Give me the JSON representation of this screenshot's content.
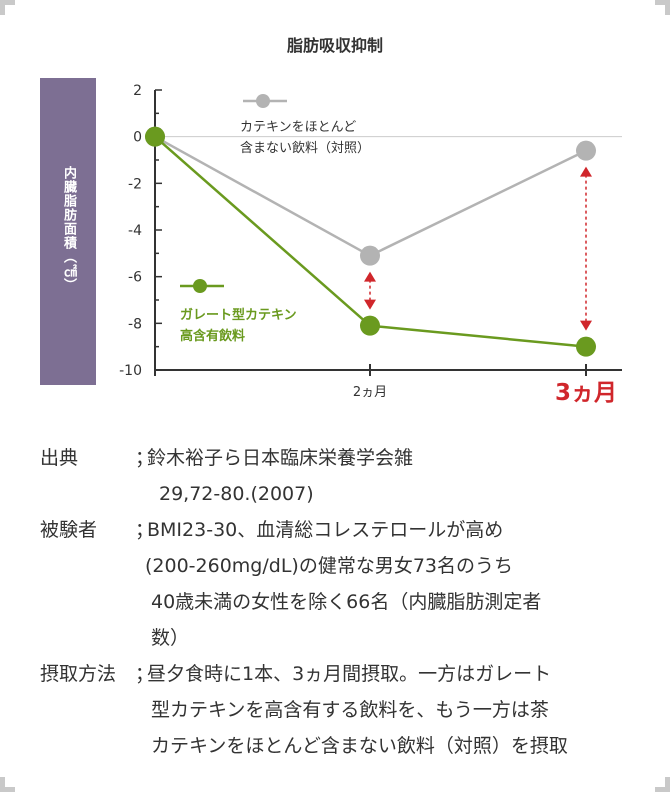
{
  "chart_data": {
    "type": "line",
    "title": "脂肪吸収抑制",
    "ylabel": "内臓脂肪面積（㎠）",
    "ylim": [
      -10,
      2
    ],
    "yticks": [
      2,
      0,
      -2,
      -4,
      -6,
      -8,
      -10
    ],
    "ytick_labels": [
      "2",
      "0",
      "-2",
      "-4",
      "-6",
      "-8",
      "-10"
    ],
    "x_labels": [
      "",
      "2ヵ月",
      "3ヵ月"
    ],
    "x_label_2": "2ヵ月",
    "x_label_3": "3ヵ月",
    "grid": false,
    "series": [
      {
        "name_line1": "カテキンをほとんど",
        "name_line2": "含まない飲料（対照）",
        "color": "#b3b3b3",
        "values": [
          0,
          -5.1,
          -0.6
        ]
      },
      {
        "name_line1": "ガレート型カテキン",
        "name_line2": "高含有飲料",
        "color": "#6a9a1f",
        "values": [
          0,
          -8.1,
          -9.0
        ]
      }
    ],
    "annotation_color": "#d0262b"
  },
  "caption": {
    "source_label": "出典",
    "source_sep": "；",
    "source_text": "鈴木裕子ら日本臨床栄養学会雑",
    "source_text2": "29,72-80.(2007)",
    "subjects_label": "被験者",
    "subjects_sep": "；",
    "subjects_text": "BMI23-30、血清総コレステロールが高め",
    "subjects_text2": "(200-260mg/dL)の健常な男女73名のうち",
    "subjects_text3": "40歳未満の女性を除く66名（内臓脂肪測定者",
    "subjects_text4": "数）",
    "method_label": "摂取方法",
    "method_sep": "；",
    "method_text": "昼夕食時に1本、3ヵ月間摂取。一方はガレート",
    "method_text2": "型カテキンを高含有する飲料を、もう一方は茶",
    "method_text3": "カテキンをほとんど含まない飲料（対照）を摂取"
  }
}
